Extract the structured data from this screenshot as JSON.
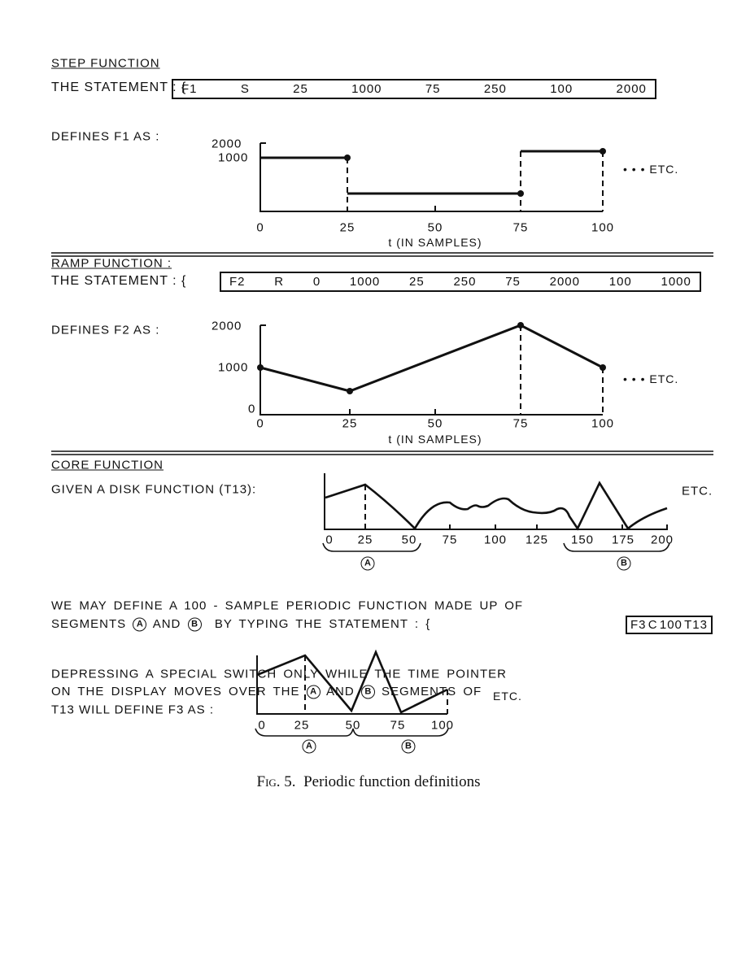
{
  "step": {
    "heading": "STEP FUNCTION",
    "statement_label": "THE STATEMENT : {",
    "statement_tokens": [
      "F1",
      "S",
      "25",
      "1000",
      "75",
      "250",
      "100",
      "2000"
    ],
    "defines": "DEFINES F1 AS :",
    "y_ticks": [
      "2000",
      "1000"
    ],
    "x_ticks": [
      "0",
      "25",
      "50",
      "75",
      "100"
    ],
    "x_label": "t (IN SAMPLES)",
    "etc": "• • • ETC."
  },
  "ramp": {
    "heading": "RAMP FUNCTION :",
    "statement_label": "THE STATEMENT : {",
    "statement_tokens": [
      "F2",
      "R",
      "0",
      "1000",
      "25",
      "250",
      "75",
      "2000",
      "100",
      "1000"
    ],
    "defines": "DEFINES F2 AS :",
    "y_ticks": [
      "2000",
      "1000",
      "0"
    ],
    "x_ticks": [
      "0",
      "25",
      "50",
      "75",
      "100"
    ],
    "x_label": "t (IN SAMPLES)",
    "etc": "• • • ETC."
  },
  "core": {
    "heading": "CORE FUNCTION",
    "given": "GIVEN A DISK FUNCTION (T13):",
    "x_ticks": [
      "0",
      "25",
      "50",
      "75",
      "100",
      "125",
      "150",
      "175",
      "200"
    ],
    "etc": "ETC.",
    "seg_a": "A",
    "seg_b": "B",
    "text1": "WE MAY DEFINE A 100 - SAMPLE PERIODIC FUNCTION MADE UP OF",
    "text2a": "SEGMENTS",
    "text2b": "AND",
    "text2c": "BY TYPING THE STATEMENT : {",
    "statement_tokens": [
      "F3",
      "C",
      "100",
      "T13"
    ],
    "text3": "DEPRESSING A SPECIAL SWITCH ONLY WHILE THE TIME POINTER",
    "text4a": "ON THE DISPLAY MOVES OVER THE",
    "text4b": "AND",
    "text4c": "SEGMENTS OF",
    "text5": "T13 WILL DEFINE F3 AS :",
    "result_x_ticks": [
      "0",
      "25",
      "50",
      "75",
      "100"
    ],
    "result_etc": "ETC."
  },
  "caption": {
    "fig": "Fig. 5.",
    "text": "Periodic function definitions"
  }
}
